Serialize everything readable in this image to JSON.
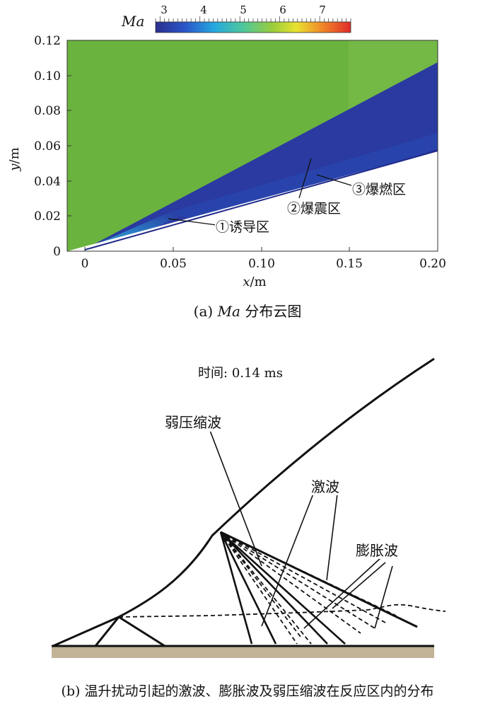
{
  "panel_a": {
    "colorbar": {
      "label": "Ma",
      "ticks": [
        "3",
        "4",
        "5",
        "6",
        "7"
      ]
    },
    "y_axis": {
      "label_italic": "y",
      "label_unit": "/m",
      "ticks": [
        "0",
        "0.02",
        "0.04",
        "0.06",
        "0.08",
        "0.10",
        "0.12"
      ]
    },
    "x_axis": {
      "label_italic": "x",
      "label_unit": "/m",
      "ticks": [
        "0",
        "0.05",
        "0.10",
        "0.15",
        "0.20"
      ]
    },
    "annotations": {
      "zone1": "①诱导区",
      "zone2": "②爆震区",
      "zone3": "③爆燃区"
    },
    "caption_prefix": "(a) ",
    "caption_italic": "Ma",
    "caption_suffix": " 分布云图",
    "colors": {
      "freestream": "#6ab33e",
      "wedge_flow": "#2a3aa0",
      "low_mach": "#1e2888"
    }
  },
  "panel_b": {
    "time_label": "时间: 0.14 ms",
    "labels": {
      "weak_compression": "弱压缩波",
      "shock": "激波",
      "expansion": "膨胀波"
    },
    "caption": "(b) 温升扰动引起的激波、膨胀波及弱压缩波在反应区内的分布",
    "colors": {
      "wall": "#c2b296",
      "lines": "#111111"
    }
  }
}
